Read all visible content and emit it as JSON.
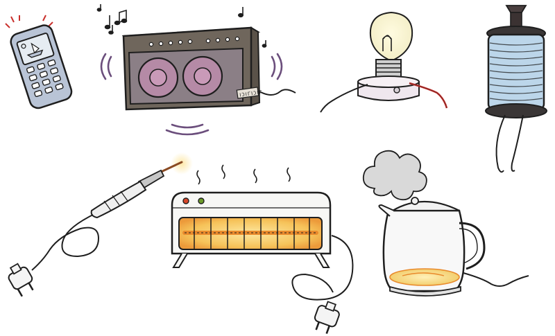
{
  "items": [
    {
      "name": "mobile-phone",
      "icon": "mobile-phone-icon"
    },
    {
      "name": "speaker",
      "icon": "speaker-icon",
      "panel_text": "ǀƆǀΓǀƆǀΓ"
    },
    {
      "name": "light-bulb",
      "icon": "light-bulb-icon"
    },
    {
      "name": "electromagnet",
      "icon": "electromagnet-icon"
    },
    {
      "name": "soldering-iron",
      "icon": "soldering-iron-icon"
    },
    {
      "name": "electric-heater",
      "icon": "electric-heater-icon"
    },
    {
      "name": "electric-kettle",
      "icon": "electric-kettle-icon"
    }
  ],
  "colors": {
    "outline": "#1e1e1e",
    "phone_body": "#b9c4d6",
    "phone_screen": "#dfe6ee",
    "speaker_body": "#6f665c",
    "speaker_grille": "#8b7f86",
    "speaker_cone": "#b58aa6",
    "sound_waves": "#6b4e7c",
    "bulb_glass": "#f6f1c8",
    "bulb_glow": "#fbf7dc",
    "coil_blue": "#bcd6ea",
    "heater_glow": "#f6c35a",
    "heater_hot": "#e98a2c",
    "kettle_water": "#f3d37a",
    "steam": "#d9d9d9",
    "wire_red": "#c9302c",
    "knob_red": "#d8482b",
    "knob_green": "#6c9b2a"
  }
}
